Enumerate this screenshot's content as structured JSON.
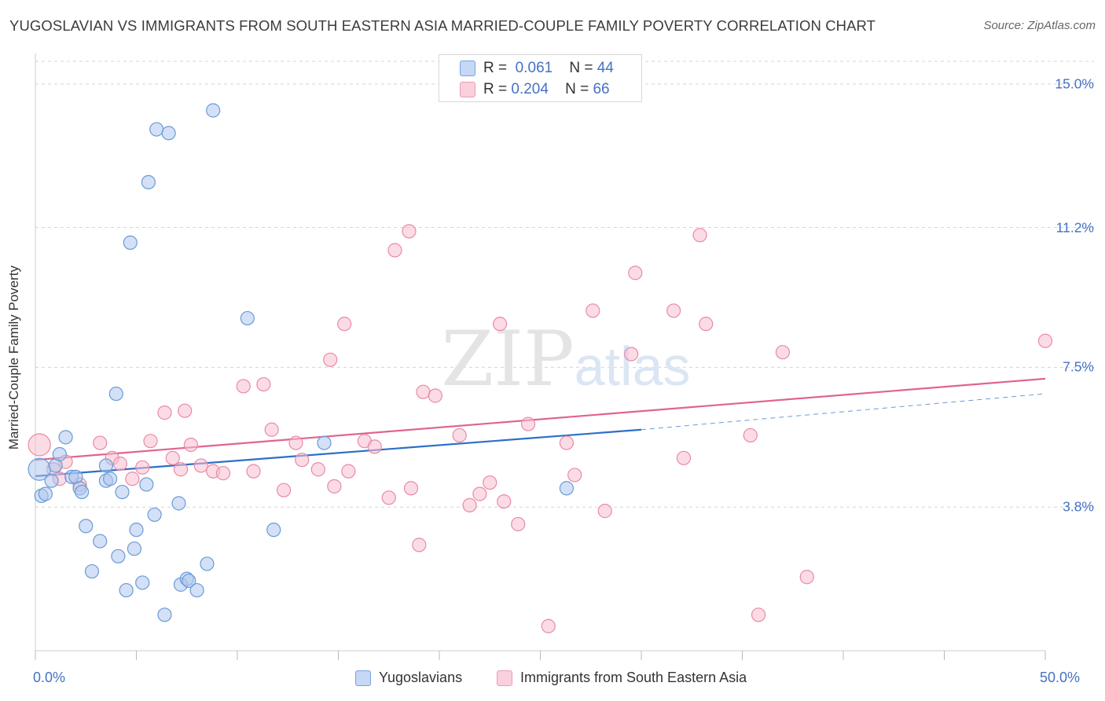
{
  "title": "YUGOSLAVIAN VS IMMIGRANTS FROM SOUTH EASTERN ASIA MARRIED-COUPLE FAMILY POVERTY CORRELATION CHART",
  "source": "Source: ZipAtlas.com",
  "watermark": "ZIPatlas",
  "colors": {
    "blue_fill": "#aec7ef",
    "blue_stroke": "#6a9bd8",
    "blue_line": "#2e6fc7",
    "pink_fill": "#f7bfd0",
    "pink_stroke": "#e88aa8",
    "pink_line": "#e0648f",
    "tick_label": "#4472c4",
    "grid": "#d5d5d5"
  },
  "legend_top": {
    "rows": [
      {
        "r_label": "R =",
        "r_value": "0.061",
        "n_label": "N =",
        "n_value": "44"
      },
      {
        "r_label": "R =",
        "r_value": "0.204",
        "n_label": "N =",
        "n_value": "66"
      }
    ]
  },
  "legend_bottom": {
    "items": [
      "Yugoslavians",
      "Immigrants from South Eastern Asia"
    ]
  },
  "chart_data": {
    "type": "scatter",
    "title": "YUGOSLAVIAN VS IMMIGRANTS FROM SOUTH EASTERN ASIA MARRIED-COUPLE FAMILY POVERTY CORRELATION CHART",
    "xlabel": "",
    "ylabel": "Married-Couple Family Poverty",
    "xlim": [
      0,
      50
    ],
    "ylim": [
      0,
      15.6
    ],
    "x_tick_labels": [
      "0.0%",
      "50.0%"
    ],
    "y_ticks": [
      3.8,
      7.5,
      11.2,
      15.0
    ],
    "y_tick_labels": [
      "3.8%",
      "7.5%",
      "11.2%",
      "15.0%"
    ],
    "grid": "horizontal dashed",
    "series": [
      {
        "name": "Yugoslavians",
        "color": "#aec7ef",
        "trend": {
          "x": [
            0,
            30
          ],
          "y": [
            4.62,
            5.85
          ],
          "dashed_extension_to": [
            50,
            6.8
          ]
        },
        "points": [
          [
            0.2,
            4.8
          ],
          [
            0.3,
            4.1
          ],
          [
            0.5,
            4.15
          ],
          [
            0.8,
            4.5
          ],
          [
            1.0,
            4.9
          ],
          [
            1.2,
            5.2
          ],
          [
            1.5,
            5.65
          ],
          [
            1.8,
            4.6
          ],
          [
            2.0,
            4.6
          ],
          [
            2.2,
            4.3
          ],
          [
            2.3,
            4.2
          ],
          [
            2.5,
            3.3
          ],
          [
            2.8,
            2.1
          ],
          [
            3.2,
            2.9
          ],
          [
            3.5,
            4.5
          ],
          [
            3.5,
            4.9
          ],
          [
            3.7,
            4.55
          ],
          [
            4.0,
            6.8
          ],
          [
            4.1,
            2.5
          ],
          [
            4.3,
            4.2
          ],
          [
            4.5,
            1.6
          ],
          [
            4.7,
            10.8
          ],
          [
            4.9,
            2.7
          ],
          [
            5.0,
            3.2
          ],
          [
            5.3,
            1.8
          ],
          [
            5.5,
            4.4
          ],
          [
            5.6,
            12.4
          ],
          [
            5.9,
            3.6
          ],
          [
            6.0,
            13.8
          ],
          [
            6.4,
            0.95
          ],
          [
            6.6,
            13.7
          ],
          [
            7.1,
            3.9
          ],
          [
            7.2,
            1.75
          ],
          [
            7.5,
            1.9
          ],
          [
            7.6,
            1.85
          ],
          [
            8.0,
            1.6
          ],
          [
            8.5,
            2.3
          ],
          [
            8.8,
            14.3
          ],
          [
            10.5,
            8.8
          ],
          [
            11.8,
            3.2
          ],
          [
            14.3,
            5.5
          ],
          [
            26.3,
            4.3
          ]
        ]
      },
      {
        "name": "Immigrants from South Eastern Asia",
        "color": "#f7bfd0",
        "trend": {
          "x": [
            0,
            50
          ],
          "y": [
            5.05,
            7.2
          ]
        },
        "points": [
          [
            0.2,
            5.45
          ],
          [
            0.9,
            4.8
          ],
          [
            1.2,
            4.55
          ],
          [
            1.5,
            5.0
          ],
          [
            2.2,
            4.4
          ],
          [
            3.2,
            5.5
          ],
          [
            3.8,
            5.1
          ],
          [
            4.2,
            4.95
          ],
          [
            4.8,
            4.55
          ],
          [
            5.3,
            4.85
          ],
          [
            5.7,
            5.55
          ],
          [
            6.4,
            6.3
          ],
          [
            6.8,
            5.1
          ],
          [
            7.2,
            4.8
          ],
          [
            7.4,
            6.35
          ],
          [
            7.7,
            5.45
          ],
          [
            8.2,
            4.9
          ],
          [
            8.8,
            4.75
          ],
          [
            9.3,
            4.7
          ],
          [
            10.3,
            7.0
          ],
          [
            10.8,
            4.75
          ],
          [
            11.3,
            7.05
          ],
          [
            11.7,
            5.85
          ],
          [
            12.3,
            4.25
          ],
          [
            12.9,
            5.5
          ],
          [
            13.2,
            5.05
          ],
          [
            14.0,
            4.8
          ],
          [
            14.6,
            7.7
          ],
          [
            14.8,
            4.35
          ],
          [
            15.3,
            8.65
          ],
          [
            15.5,
            4.75
          ],
          [
            16.3,
            5.55
          ],
          [
            16.8,
            5.4
          ],
          [
            17.5,
            4.05
          ],
          [
            17.8,
            10.6
          ],
          [
            18.5,
            11.1
          ],
          [
            18.6,
            4.3
          ],
          [
            19.0,
            2.8
          ],
          [
            19.2,
            6.85
          ],
          [
            19.8,
            6.75
          ],
          [
            21.0,
            5.7
          ],
          [
            21.5,
            3.85
          ],
          [
            22.0,
            4.15
          ],
          [
            22.5,
            4.45
          ],
          [
            23.0,
            8.65
          ],
          [
            23.2,
            3.95
          ],
          [
            23.9,
            3.35
          ],
          [
            24.4,
            6.0
          ],
          [
            25.4,
            0.65
          ],
          [
            26.3,
            5.5
          ],
          [
            26.7,
            4.65
          ],
          [
            27.6,
            9.0
          ],
          [
            28.2,
            3.7
          ],
          [
            29.5,
            7.85
          ],
          [
            29.7,
            10.0
          ],
          [
            31.6,
            9.0
          ],
          [
            32.1,
            5.1
          ],
          [
            32.9,
            11.0
          ],
          [
            33.2,
            8.65
          ],
          [
            35.4,
            5.7
          ],
          [
            35.8,
            0.95
          ],
          [
            37.0,
            7.9
          ],
          [
            38.2,
            1.95
          ],
          [
            50.0,
            8.2
          ]
        ]
      }
    ]
  }
}
